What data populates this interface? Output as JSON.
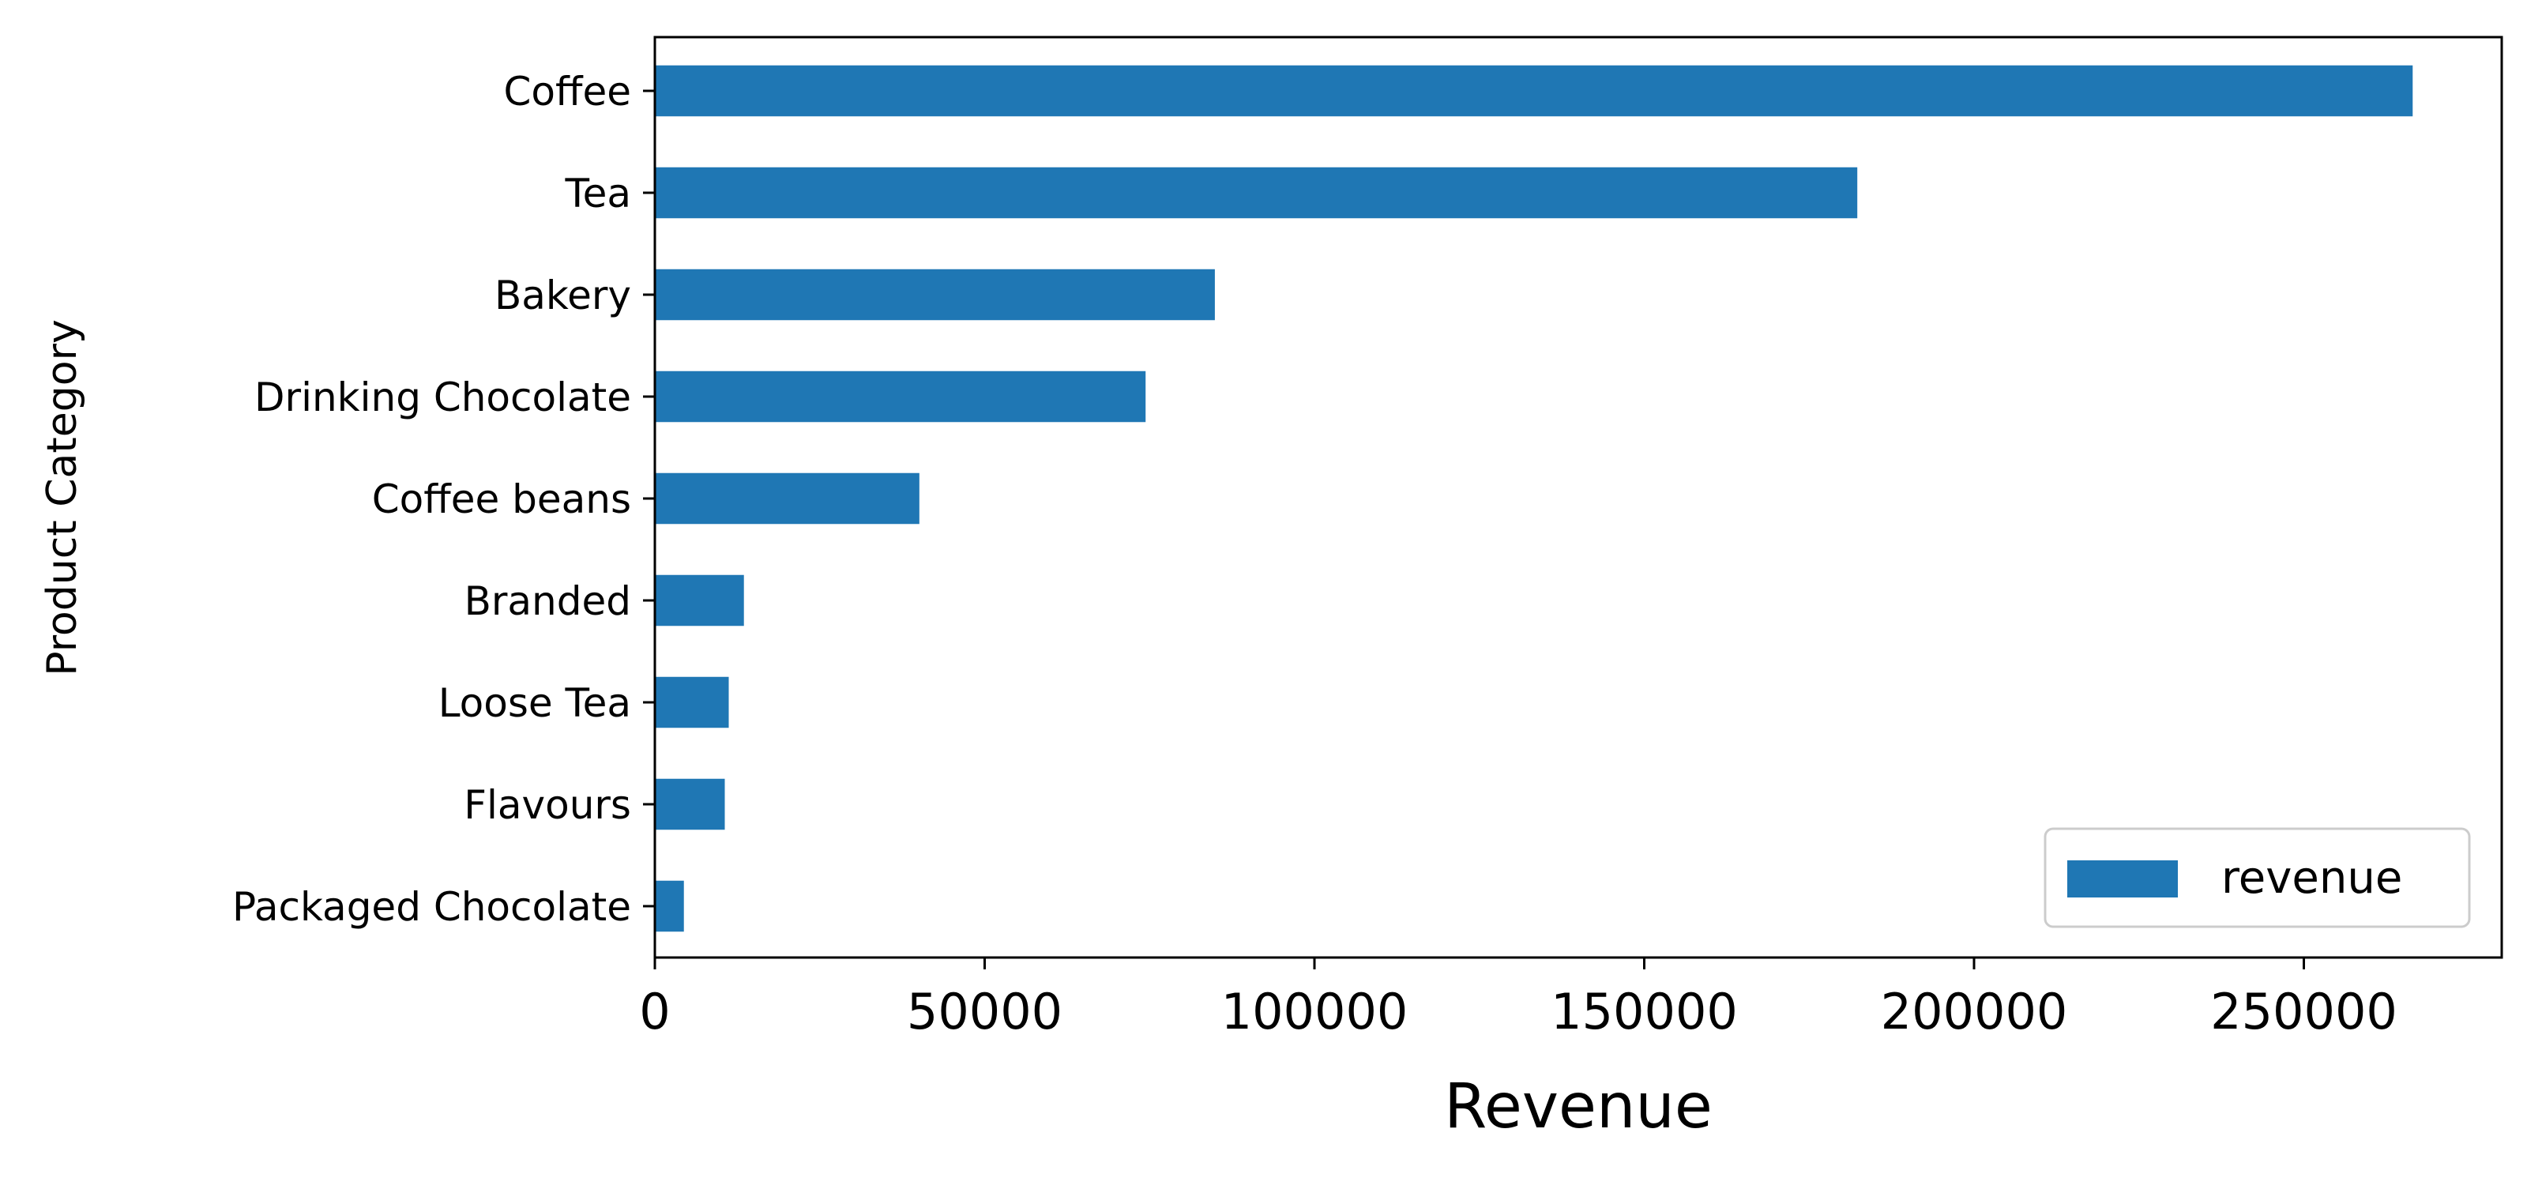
{
  "chart_data": {
    "type": "bar",
    "orientation": "horizontal",
    "title": "",
    "xlabel": "Revenue",
    "ylabel": "Product Category",
    "categories": [
      "Coffee",
      "Tea",
      "Bakery",
      "Drinking Chocolate",
      "Coffee beans",
      "Branded",
      "Loose Tea",
      "Flavours",
      "Packaged Chocolate"
    ],
    "series": [
      {
        "name": "revenue",
        "values": [
          266500,
          182300,
          84900,
          74400,
          40100,
          13500,
          11200,
          10600,
          4400
        ]
      }
    ],
    "xlim": [
      0,
      280000
    ],
    "xticks": [
      0,
      50000,
      100000,
      150000,
      200000,
      250000
    ],
    "xtick_labels": [
      "0",
      "50000",
      "100000",
      "150000",
      "200000",
      "250000"
    ],
    "grid": false,
    "legend_position": "lower-right",
    "colors": {
      "bar": "#1f77b4"
    }
  }
}
